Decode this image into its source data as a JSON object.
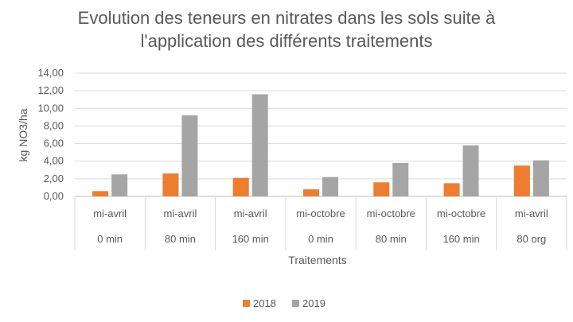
{
  "chart_data": {
    "type": "bar",
    "title": "Evolution des teneurs en nitrates dans les sols suite à l'application des différents traitements",
    "title_lines": [
      "Evolution des teneurs en nitrates dans les sols suite à",
      "l'application des différents traitements"
    ],
    "ylabel": "kg NO3/ha",
    "xlabel": "Traitements",
    "ylim": [
      0,
      14
    ],
    "ytick_step": 2,
    "ytick_labels": [
      "0,00",
      "2,00",
      "4,00",
      "6,00",
      "8,00",
      "10,00",
      "12,00",
      "14,00"
    ],
    "categories": [
      {
        "period": "mi-avril",
        "dose": "0 min"
      },
      {
        "period": "mi-avril",
        "dose": "80 min"
      },
      {
        "period": "mi-avril",
        "dose": "160 min"
      },
      {
        "period": "mi-octobre",
        "dose": "0 min"
      },
      {
        "period": "mi-octobre",
        "dose": "80 min"
      },
      {
        "period": "mi-octobre",
        "dose": "160 min"
      },
      {
        "period": "mi-avril",
        "dose": "80 org"
      }
    ],
    "series": [
      {
        "name": "2018",
        "color": "#ED7D31",
        "values": [
          0.6,
          2.6,
          2.1,
          0.8,
          1.6,
          1.5,
          3.5
        ]
      },
      {
        "name": "2019",
        "color": "#A5A5A5",
        "values": [
          2.5,
          9.2,
          11.6,
          2.2,
          3.8,
          5.8,
          4.1
        ]
      }
    ],
    "grid": true,
    "legend_position": "bottom-center"
  }
}
